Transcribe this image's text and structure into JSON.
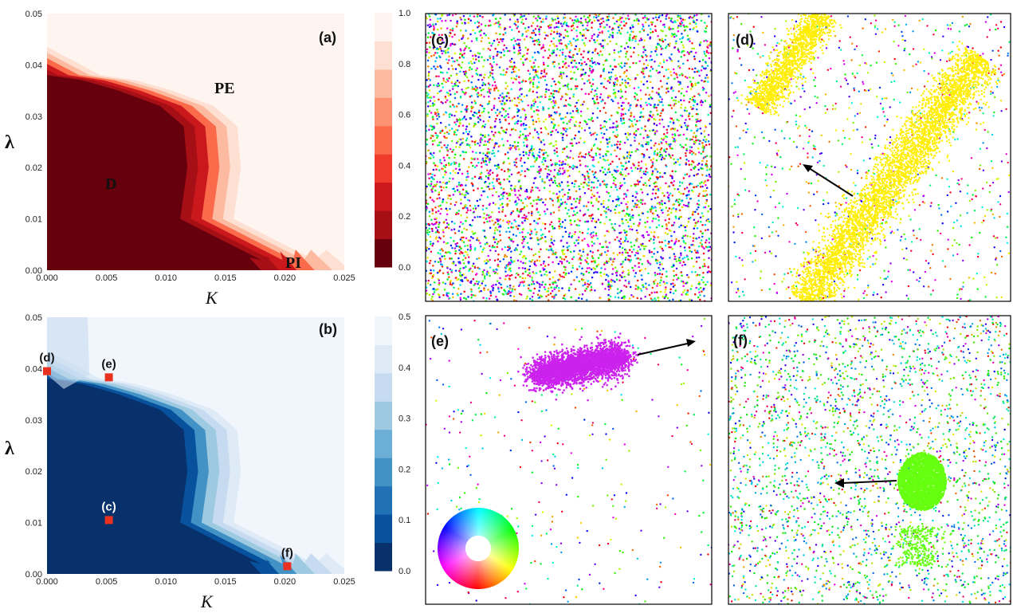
{
  "chart_data": [
    {
      "type": "heatmap",
      "panel": "(a)",
      "title": "",
      "xlabel": "K",
      "ylabel": "λ",
      "xlim": [
        0.0,
        0.025
      ],
      "ylim": [
        0.0,
        0.05
      ],
      "x_ticks": [
        "0.000",
        "0.005",
        "0.010",
        "0.015",
        "0.020",
        "0.025"
      ],
      "y_ticks": [
        "0.00",
        "0.01",
        "0.02",
        "0.03",
        "0.04",
        "0.05"
      ],
      "colorbar": {
        "min": 0.0,
        "max": 1.0,
        "ticks": [
          "0.0",
          "0.2",
          "0.4",
          "0.6",
          "0.8",
          "1.0"
        ],
        "colors": [
          "#67000d",
          "#a50f15",
          "#cb181d",
          "#ef3b2c",
          "#fb6a4a",
          "#fc9272",
          "#fcbba1",
          "#fee0d2",
          "#fff5f0"
        ]
      },
      "region_labels": [
        "D",
        "PE",
        "PI"
      ],
      "boundary": [
        {
          "lambda": 0.0,
          "K": 0.0115
        },
        {
          "lambda": 0.002,
          "K": 0.018
        },
        {
          "lambda": 0.01,
          "K": 0.0112
        },
        {
          "lambda": 0.02,
          "K": 0.0118
        },
        {
          "lambda": 0.028,
          "K": 0.0115
        },
        {
          "lambda": 0.032,
          "K": 0.0095
        },
        {
          "lambda": 0.035,
          "K": 0.006
        },
        {
          "lambda": 0.037,
          "K": 0.003
        },
        {
          "lambda": 0.038,
          "K": 0.0
        }
      ],
      "low_value_region": 0.0,
      "high_value_region": 1.0
    },
    {
      "type": "heatmap",
      "panel": "(b)",
      "title": "",
      "xlabel": "K",
      "ylabel": "λ",
      "xlim": [
        0.0,
        0.025
      ],
      "ylim": [
        0.0,
        0.05
      ],
      "x_ticks": [
        "0.000",
        "0.005",
        "0.010",
        "0.015",
        "0.020",
        "0.025"
      ],
      "y_ticks": [
        "0.00",
        "0.01",
        "0.02",
        "0.03",
        "0.04",
        "0.05"
      ],
      "colorbar": {
        "min": 0.0,
        "max": 0.5,
        "ticks": [
          "0.0",
          "0.1",
          "0.2",
          "0.3",
          "0.4",
          "0.5"
        ],
        "colors": [
          "#08306b",
          "#08519c",
          "#2171b5",
          "#4292c6",
          "#6baed6",
          "#9ecae1",
          "#c6dbef",
          "#deebf7",
          "#f0f6fc"
        ]
      },
      "markers": [
        {
          "label": "(d)",
          "K": 0.0,
          "lambda": 0.0395
        },
        {
          "label": "(e)",
          "K": 0.0052,
          "lambda": 0.0383
        },
        {
          "label": "(c)",
          "K": 0.0052,
          "lambda": 0.0105
        },
        {
          "label": "(f)",
          "K": 0.0202,
          "lambda": 0.0015
        }
      ],
      "marker_color": "#e8321f"
    },
    {
      "type": "scatter",
      "panel": "(c)",
      "description_kind": "uniform",
      "arrow": false
    },
    {
      "type": "scatter",
      "panel": "(d)",
      "description_kind": "band",
      "cluster_color": "#ffee00",
      "arrow": true
    },
    {
      "type": "scatter",
      "panel": "(e)",
      "description_kind": "blob",
      "cluster_color": "#cc22ee",
      "arrow": true,
      "color_wheel": true
    },
    {
      "type": "scatter",
      "panel": "(f)",
      "description_kind": "blob",
      "cluster_color": "#66ff10",
      "arrow": true
    }
  ]
}
